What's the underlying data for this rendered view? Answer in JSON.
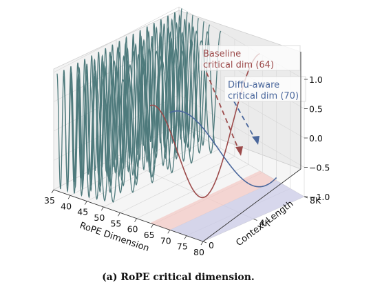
{
  "chart_data": {
    "type": "line",
    "subtype": "3d-surface-of-sinusoids",
    "title": "",
    "caption": "(a)  RoPE critical dimension.",
    "xlabel": "RoPE Dimension",
    "ylabel": "Context Length",
    "x_ticks": [
      "35",
      "40",
      "45",
      "50",
      "55",
      "60",
      "65",
      "70",
      "75",
      "80"
    ],
    "xlim": [
      35,
      80
    ],
    "y_ticks": [
      "0",
      "4K",
      "8K"
    ],
    "ylim": [
      0,
      8000
    ],
    "z_ticks": [
      "1.0",
      "0.5",
      "0.0",
      "−0.5",
      "−1.0"
    ],
    "zlim": [
      -1.0,
      1.0
    ],
    "grid": true,
    "series": [
      {
        "name": "",
        "dims": [
          36,
          38,
          40,
          42,
          44,
          46,
          48,
          50
        ],
        "function": "cos",
        "color": "#4e7a7c",
        "periods_over_length": [
          18,
          16,
          15,
          13,
          11,
          9,
          7.5,
          6
        ]
      },
      {
        "name": "Baseline critical dim",
        "dim": 64,
        "function": "cos",
        "color": "#9c4a4a",
        "periods_over_length": 1.0
      },
      {
        "name": "Diffu-aware critical dim",
        "dim": 70,
        "function": "cos",
        "color": "#4a679c",
        "periods_over_length": 0.55
      }
    ],
    "annotations": [
      {
        "text": "Baseline\ncritical dim (64)",
        "color": "#9c4a4a",
        "target_dim": 64
      },
      {
        "text": "Diffu-aware\ncritical dim (70)",
        "color": "#4a679c",
        "target_dim": 70
      }
    ],
    "floor_bands": [
      {
        "from_dim": 64,
        "to_dim": 70,
        "color": "#f3c9c6"
      },
      {
        "from_dim": 70,
        "to_dim": 80,
        "color": "#c9c9e6"
      }
    ]
  }
}
